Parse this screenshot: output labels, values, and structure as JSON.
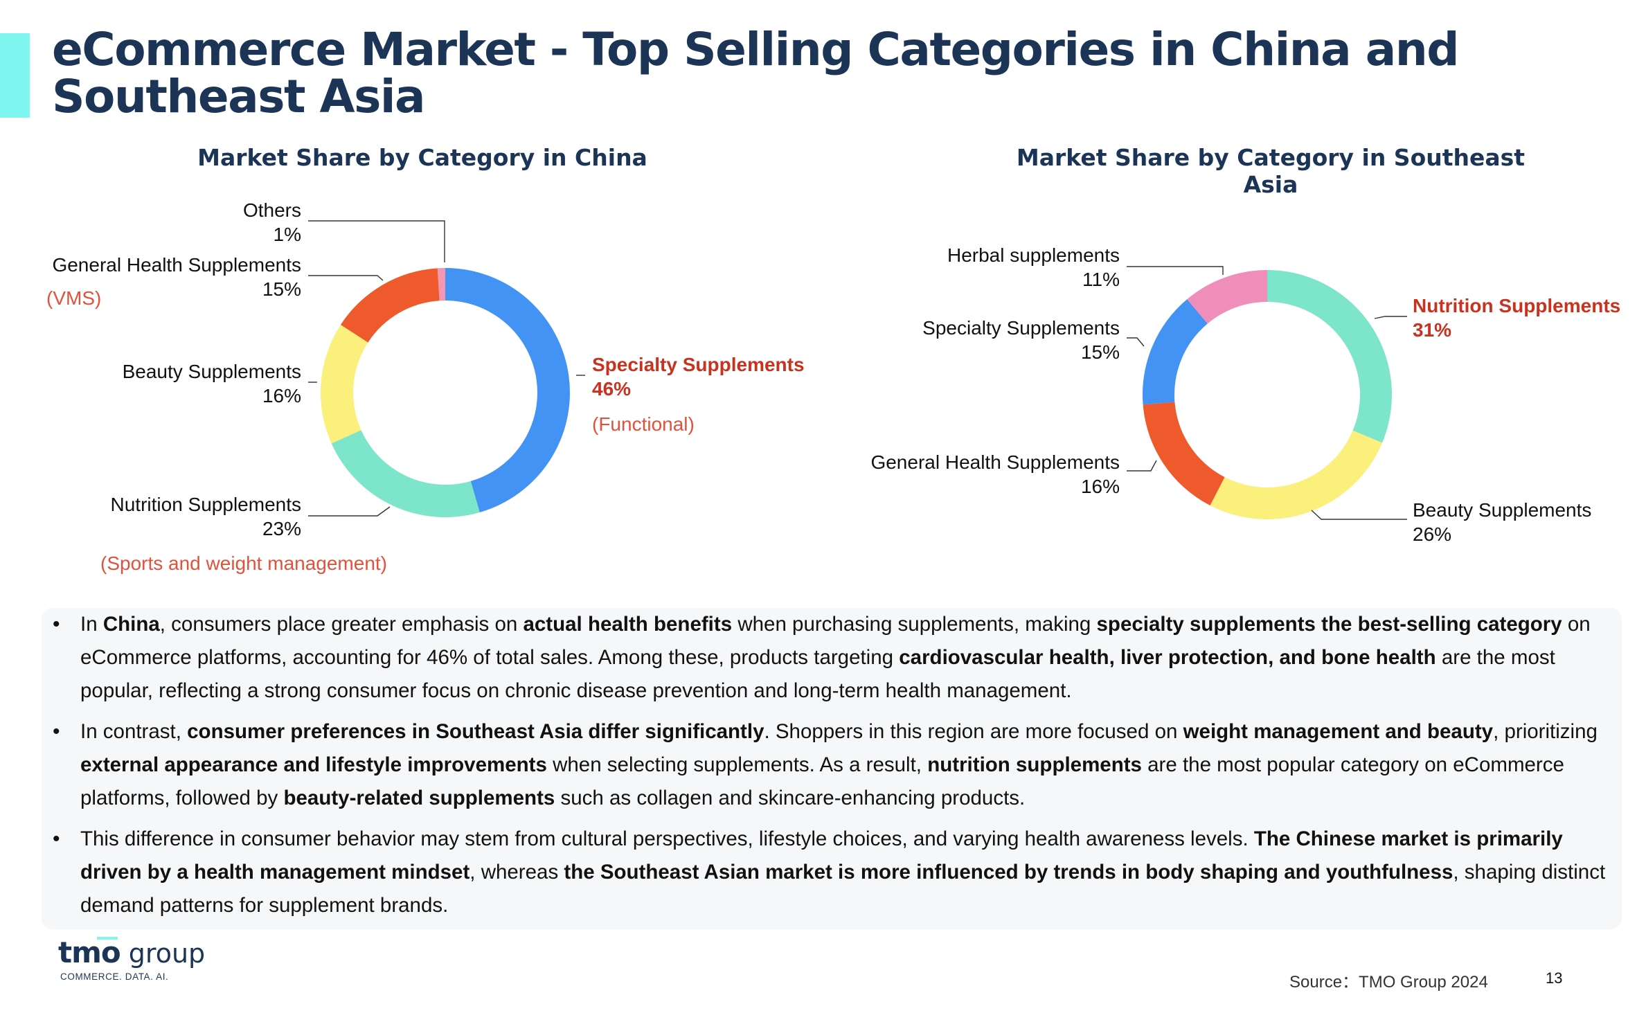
{
  "title": "eCommerce Market - Top Selling Categories in China and Southeast Asia",
  "chart_data": [
    {
      "type": "pie",
      "title": "Market Share by Category in China",
      "categories": [
        "Specialty Supplements",
        "Nutrition Supplements",
        "Beauty Supplements",
        "General Health Supplements",
        "Others"
      ],
      "values": [
        46,
        23,
        16,
        15,
        1
      ],
      "value_labels": [
        "46%",
        "23%",
        "16%",
        "15%",
        "1%"
      ],
      "notes": [
        "(Functional)",
        "(Sports and weight management)",
        "",
        "(VMS)",
        ""
      ],
      "colors": [
        "#4393f4",
        "#7de5ca",
        "#fcf07c",
        "#ee5a2c",
        "#f497b3"
      ],
      "highlight": [
        true,
        false,
        false,
        false,
        false
      ]
    },
    {
      "type": "pie",
      "title": "Market Share by Category in Southeast Asia",
      "categories": [
        "Nutrition Supplements",
        "Beauty Supplements",
        "General Health Supplements",
        "Specialty Supplements",
        "Herbal supplements"
      ],
      "values": [
        31,
        26,
        16,
        15,
        11
      ],
      "value_labels": [
        "31%",
        "26%",
        "16%",
        "15%",
        "11%"
      ],
      "notes": [
        "",
        "",
        "",
        "",
        ""
      ],
      "colors": [
        "#7de5ca",
        "#fcf07c",
        "#ee5a2c",
        "#4393f4",
        "#ef8dbb"
      ],
      "highlight": [
        true,
        false,
        false,
        false,
        false
      ]
    }
  ],
  "bullets": [
    [
      {
        "t": "In ",
        "b": false
      },
      {
        "t": "China",
        "b": true
      },
      {
        "t": ", consumers place greater emphasis on ",
        "b": false
      },
      {
        "t": "actual health benefits",
        "b": true
      },
      {
        "t": " when purchasing supplements, making ",
        "b": false
      },
      {
        "t": "specialty supplements the best-selling category",
        "b": true
      },
      {
        "t": " on eCommerce platforms, accounting for 46% of total sales. Among these, products targeting ",
        "b": false
      },
      {
        "t": "cardiovascular health, liver protection, and bone health",
        "b": true
      },
      {
        "t": " are the most popular, reflecting a strong consumer focus on chronic disease prevention and long-term health management.",
        "b": false
      }
    ],
    [
      {
        "t": "In contrast, ",
        "b": false
      },
      {
        "t": "consumer preferences in Southeast Asia differ significantly",
        "b": true
      },
      {
        "t": ". Shoppers in this region are more focused on ",
        "b": false
      },
      {
        "t": "weight management and beauty",
        "b": true
      },
      {
        "t": ", prioritizing ",
        "b": false
      },
      {
        "t": "external appearance and lifestyle improvements",
        "b": true
      },
      {
        "t": " when selecting supplements. As a result, ",
        "b": false
      },
      {
        "t": "nutrition supplements",
        "b": true
      },
      {
        "t": " are the most popular category on eCommerce platforms, followed by ",
        "b": false
      },
      {
        "t": "beauty-related supplements",
        "b": true
      },
      {
        "t": " such as collagen and skincare-enhancing products.",
        "b": false
      }
    ],
    [
      {
        "t": "This difference in consumer behavior may stem from cultural perspectives, lifestyle choices, and varying health awareness levels. ",
        "b": false
      },
      {
        "t": "The Chinese market is primarily driven by a health management mindset",
        "b": true
      },
      {
        "t": ", whereas ",
        "b": false
      },
      {
        "t": "the Southeast Asian market is more influenced by trends in body shaping and youthfulness",
        "b": true
      },
      {
        "t": ", shaping distinct demand patterns for supplement brands.",
        "b": false
      }
    ]
  ],
  "footer": {
    "logo_tmo": "tmo",
    "logo_group": " group",
    "tagline": "COMMERCE. DATA. AI.",
    "source": "Source：TMO Group 2024",
    "page_number": "13"
  },
  "colors": {
    "title": "#1c3557",
    "highlight_label": "#c8321e",
    "note": "#e0523c",
    "accent": "#7ff6f0"
  }
}
